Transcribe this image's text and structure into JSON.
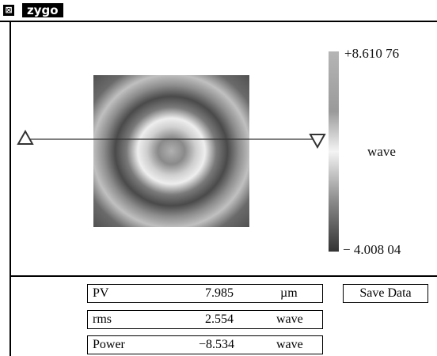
{
  "window": {
    "title": "zygo"
  },
  "colorbar": {
    "max_label": "+8.610 76",
    "min_label": "− 4.008 04",
    "unit": "wave"
  },
  "results": {
    "rows": [
      [
        "PV",
        "7.985",
        "µm"
      ],
      [
        "rms",
        "2.554",
        "wave"
      ],
      [
        "Power",
        "−8.534",
        "wave"
      ]
    ]
  },
  "buttons": {
    "save": "Save Data"
  }
}
